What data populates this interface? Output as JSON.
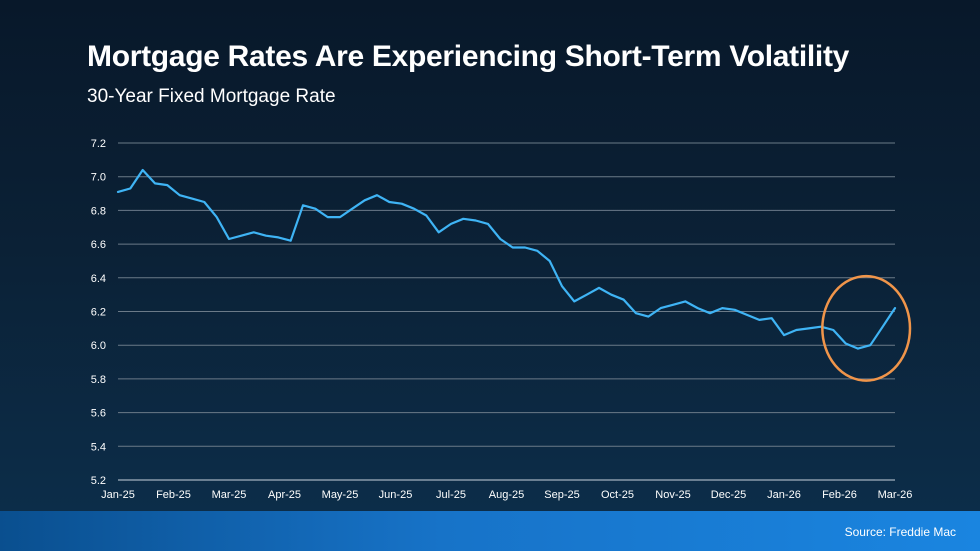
{
  "chart_data": {
    "type": "line",
    "title": "Mortgage Rates Are Experiencing Short-Term Volatility",
    "subtitle": "30-Year Fixed Mortgage Rate",
    "xlabel": "",
    "ylabel": "",
    "ylim": [
      5.2,
      7.2
    ],
    "yticks": [
      "7.2",
      "7.0",
      "6.8",
      "6.6",
      "6.4",
      "6.2",
      "6.0",
      "5.8",
      "5.6",
      "5.4",
      "5.2"
    ],
    "xtick_labels": [
      "Jan-25",
      "Feb-25",
      "Mar-25",
      "Apr-25",
      "May-25",
      "Jun-25",
      "Jul-25",
      "Aug-25",
      "Sep-25",
      "Oct-25",
      "Nov-25",
      "Dec-25",
      "Jan-26",
      "Feb-26",
      "Mar-26"
    ],
    "grid": true,
    "legend": "none",
    "series": [
      {
        "color": "#3fb4f5",
        "x_start": "Jan-25",
        "frequency": "weekly",
        "values": [
          6.91,
          6.93,
          7.04,
          6.96,
          6.95,
          6.89,
          6.87,
          6.85,
          6.76,
          6.63,
          6.65,
          6.67,
          6.65,
          6.64,
          6.62,
          6.83,
          6.81,
          6.76,
          6.76,
          6.81,
          6.86,
          6.89,
          6.85,
          6.84,
          6.81,
          6.77,
          6.67,
          6.72,
          6.75,
          6.74,
          6.72,
          6.63,
          6.58,
          6.58,
          6.56,
          6.5,
          6.35,
          6.26,
          6.3,
          6.34,
          6.3,
          6.27,
          6.19,
          6.17,
          6.22,
          6.24,
          6.26,
          6.22,
          6.19,
          6.22,
          6.21,
          6.18,
          6.15,
          6.16,
          6.06,
          6.09,
          6.1,
          6.11,
          6.09,
          6.01,
          5.98,
          6.0,
          6.11,
          6.22
        ]
      }
    ],
    "highlight": {
      "shape": "ellipse",
      "color": "#f0954a",
      "around": "latest weeks"
    }
  },
  "footer": {
    "source": "Source: Freddie Mac"
  }
}
